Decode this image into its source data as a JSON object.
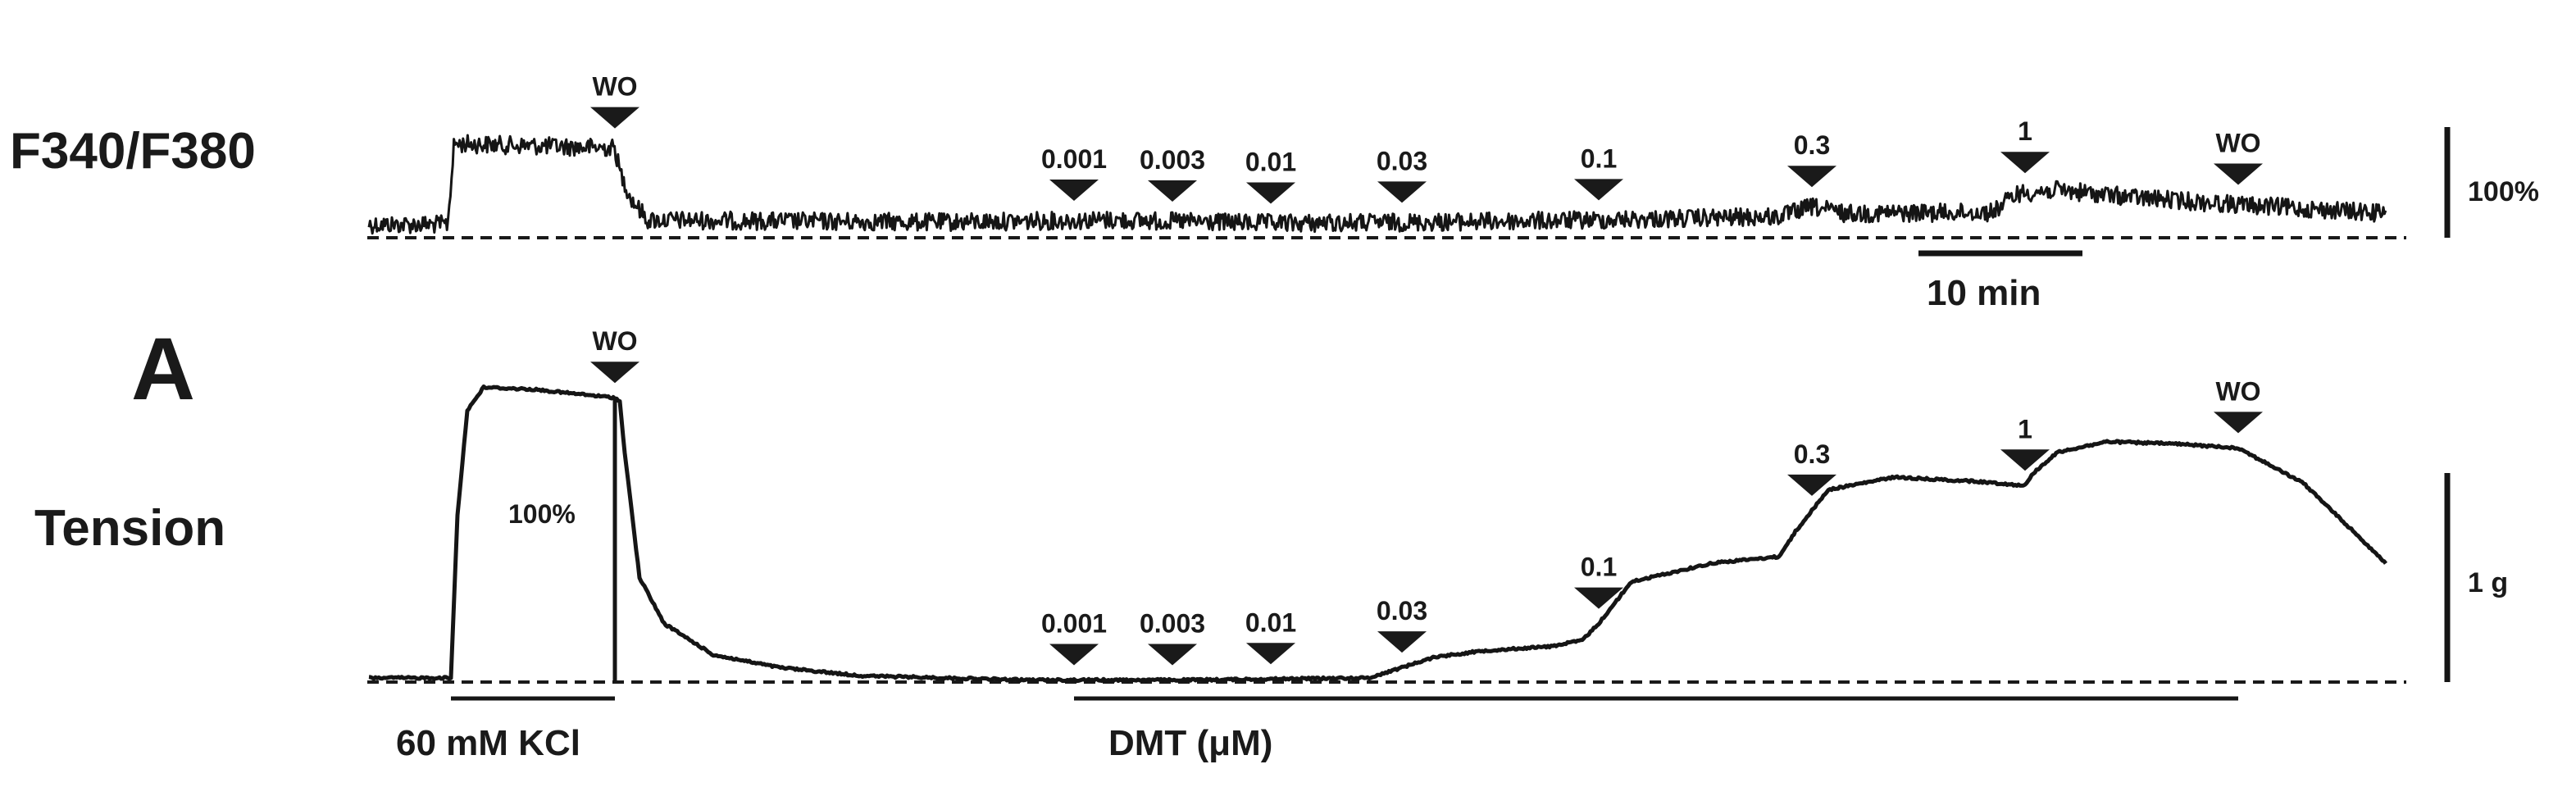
{
  "chart_data": {
    "type": "line",
    "panel_label": "A",
    "x_unit": "min",
    "time_scale_bar": {
      "label": "10 min",
      "value": 10
    },
    "panels": [
      {
        "id": "f340",
        "ylabel": "F340/F380",
        "scale_bar": {
          "label": "100%",
          "value": 100
        },
        "baseline": 0,
        "markers": [
          {
            "t": 15,
            "label": "WO"
          },
          {
            "t": 43,
            "label": "0.001"
          },
          {
            "t": 49,
            "label": "0.003"
          },
          {
            "t": 55,
            "label": "0.01"
          },
          {
            "t": 63,
            "label": "0.03"
          },
          {
            "t": 75,
            "label": "0.1"
          },
          {
            "t": 88,
            "label": "0.3"
          },
          {
            "t": 101,
            "label": "1"
          },
          {
            "t": 114,
            "label": "WO"
          }
        ],
        "trace": {
          "x": [
            0,
            4.8,
            5.2,
            15.0,
            15.3,
            16.0,
            17.0,
            25,
            35,
            45,
            55,
            65,
            75,
            86,
            88,
            90,
            99,
            100.5,
            103,
            108,
            115,
            123
          ],
          "y": [
            12,
            12,
            85,
            81,
            60,
            35,
            16,
            15,
            14,
            16,
            13,
            14,
            16,
            19,
            28,
            22,
            23,
            40,
            43,
            36,
            29,
            22
          ]
        }
      },
      {
        "id": "tension",
        "ylabel": "Tension",
        "scale_bar": {
          "label": "1 g",
          "value": 1
        },
        "response_label": "100%",
        "baseline": 0,
        "markers": [
          {
            "t": 15,
            "label": "WO"
          },
          {
            "t": 43,
            "label": "0.001"
          },
          {
            "t": 49,
            "label": "0.003"
          },
          {
            "t": 55,
            "label": "0.01"
          },
          {
            "t": 63,
            "label": "0.03"
          },
          {
            "t": 75,
            "label": "0.1"
          },
          {
            "t": 88,
            "label": "0.3"
          },
          {
            "t": 101,
            "label": "1"
          },
          {
            "t": 114,
            "label": "WO"
          }
        ],
        "trace": {
          "x": [
            0,
            5.0,
            5.4,
            6.0,
            7.0,
            10.0,
            15.0,
            15.3,
            15.6,
            16.5,
            18,
            21,
            25,
            30,
            40,
            50,
            61,
            63,
            65,
            68,
            72,
            74,
            75,
            77,
            82,
            86,
            87,
            89,
            93,
            98,
            101,
            101.5,
            103,
            106,
            110,
            114,
            118,
            123
          ],
          "y": [
            0.02,
            0.02,
            0.8,
            1.3,
            1.41,
            1.4,
            1.36,
            1.34,
            1.1,
            0.5,
            0.28,
            0.13,
            0.07,
            0.03,
            0.01,
            0.01,
            0.02,
            0.07,
            0.12,
            0.15,
            0.17,
            0.2,
            0.28,
            0.48,
            0.57,
            0.6,
            0.72,
            0.92,
            0.98,
            0.96,
            0.94,
            1.0,
            1.1,
            1.15,
            1.14,
            1.12,
            0.95,
            0.57
          ]
        }
      }
    ],
    "treatments": [
      {
        "label": "60 mM KCl",
        "start": 5,
        "end": 15
      },
      {
        "label": "DMT (μM)",
        "start": 43,
        "end": 114
      }
    ]
  }
}
